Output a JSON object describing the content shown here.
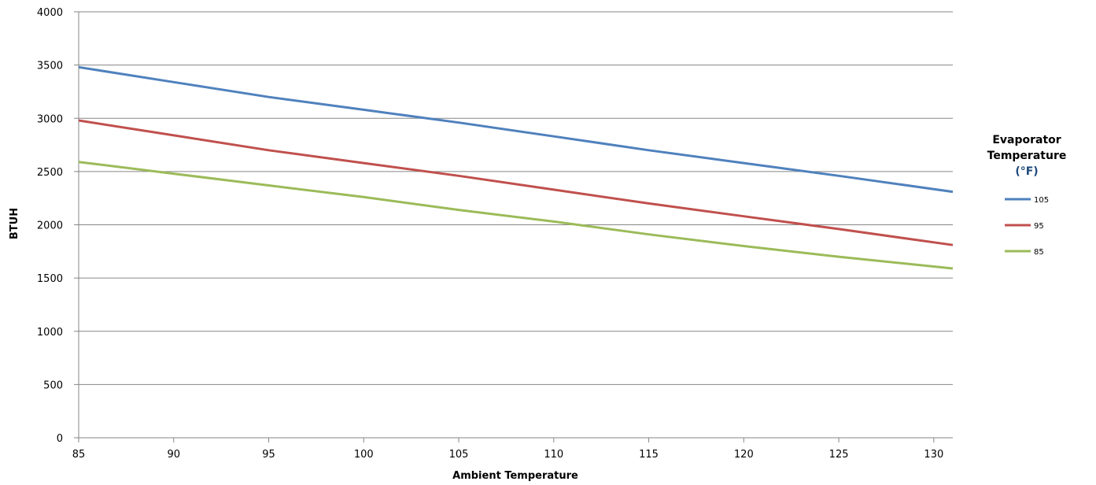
{
  "chart_data": {
    "type": "line",
    "xlabel": "Ambient Temperature",
    "ylabel": "BTUH",
    "xlim": [
      85,
      131
    ],
    "ylim": [
      0,
      4000
    ],
    "x_ticks": [
      85,
      90,
      95,
      100,
      105,
      110,
      115,
      120,
      125,
      130
    ],
    "y_ticks": [
      0,
      500,
      1000,
      1500,
      2000,
      2500,
      3000,
      3500,
      4000
    ],
    "grid": {
      "horizontal": true,
      "vertical": false
    },
    "legend": {
      "position": "right",
      "title_lines": [
        "Evaporator",
        "Temperature",
        "(°F)"
      ]
    },
    "series": [
      {
        "name": "105",
        "color": "#4F81BD",
        "x": [
          85,
          90,
          95,
          100,
          105,
          110,
          115,
          120,
          125,
          131
        ],
        "y": [
          3480,
          3340,
          3200,
          3080,
          2960,
          2830,
          2700,
          2580,
          2460,
          2310
        ]
      },
      {
        "name": "95",
        "color": "#C0504D",
        "x": [
          85,
          90,
          95,
          100,
          105,
          110,
          115,
          120,
          125,
          131
        ],
        "y": [
          2980,
          2840,
          2700,
          2580,
          2460,
          2330,
          2200,
          2080,
          1960,
          1810
        ]
      },
      {
        "name": "85",
        "color": "#9BBB59",
        "x": [
          85,
          90,
          95,
          100,
          105,
          110,
          115,
          120,
          125,
          131
        ],
        "y": [
          2590,
          2480,
          2370,
          2260,
          2140,
          2030,
          1910,
          1800,
          1700,
          1590
        ]
      }
    ]
  }
}
